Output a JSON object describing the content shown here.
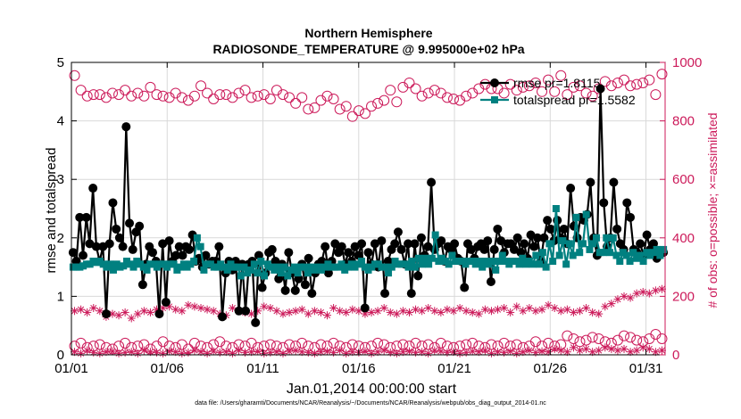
{
  "colors": {
    "rmse": "#000000",
    "spread": "#008080",
    "obs": "#cc1a5a",
    "axis": "#000000"
  },
  "chart_data": {
    "type": "line",
    "title": [
      "Northern Hemisphere",
      "RADIOSONDE_TEMPERATURE @ 9.995000e+02 hPa"
    ],
    "xlabel": "Jan.01,2014 00:00:00 start",
    "ylabel": "rmse and totalspread",
    "y2label": "# of obs: o=possible; ×=assimilated",
    "footnote": "data file: /Users/gharamti/Documents/NCAR/Reanalysis/~/Documents/NCAR/Reanalysis/webpub/obs_diag_output_2014-01.nc",
    "xlim": [
      0,
      31
    ],
    "ylim": [
      0,
      5
    ],
    "y2lim": [
      0,
      1000
    ],
    "xticks": [
      0,
      5,
      10,
      15,
      20,
      25,
      30
    ],
    "xticklabels": [
      "01/01",
      "01/06",
      "01/11",
      "01/16",
      "01/21",
      "01/26",
      "01/31"
    ],
    "yticks": [
      0,
      1,
      2,
      3,
      4,
      5
    ],
    "yticklabels": [
      "0",
      "1",
      "2",
      "3",
      "4",
      "5"
    ],
    "y2ticks": [
      0,
      200,
      400,
      600,
      800,
      1000
    ],
    "y2ticklabels": [
      "0",
      "200",
      "400",
      "600",
      "800",
      "1000"
    ],
    "legend": {
      "position": "top-right",
      "entries": [
        "rmse pr=1.8115",
        "totalspread pr=1.5582"
      ]
    },
    "series": [
      {
        "name": "rmse pr=1.8115",
        "axis": "left",
        "values": [
          1.75,
          1.6,
          2.35,
          1.7,
          2.35,
          1.9,
          2.85,
          1.85,
          1.6,
          1.85,
          0.7,
          1.9,
          2.6,
          2.15,
          2.0,
          1.85,
          3.9,
          2.25,
          1.8,
          2.1,
          2.2,
          1.2,
          1.55,
          1.85,
          1.75,
          1.6,
          0.7,
          1.9,
          0.9,
          1.95,
          1.6,
          1.7,
          1.85,
          1.7,
          1.85,
          1.8,
          2.05,
          1.6,
          1.65,
          1.5,
          1.7,
          1.55,
          1.6,
          1.6,
          1.85,
          0.65,
          1.4,
          1.6,
          1.45,
          1.6,
          0.75,
          1.55,
          0.75,
          1.55,
          1.6,
          0.55,
          1.7,
          1.15,
          1.4,
          1.75,
          1.8,
          1.6,
          1.3,
          1.55,
          1.1,
          1.75,
          1.4,
          1.1,
          1.3,
          1.55,
          1.2,
          1.65,
          1.05,
          1.4,
          1.55,
          1.6,
          1.85,
          1.4,
          1.6,
          1.9,
          1.75,
          1.85,
          1.55,
          1.75,
          1.6,
          1.85,
          1.7,
          1.9,
          0.8,
          1.75,
          1.55,
          1.9,
          1.5,
          1.95,
          1.05,
          1.6,
          1.8,
          1.9,
          2.1,
          1.8,
          1.55,
          1.9,
          1.05,
          1.9,
          1.35,
          2.0,
          1.7,
          1.85,
          2.95,
          1.8,
          1.9,
          1.95,
          1.6,
          1.85,
          1.8,
          1.9,
          1.65,
          1.6,
          1.15,
          1.9,
          1.8,
          1.65,
          1.85,
          1.9,
          1.8,
          1.95,
          1.25,
          1.8,
          2.15,
          1.95,
          1.75,
          1.9,
          1.9,
          1.8,
          2.0,
          1.75,
          1.9,
          1.65,
          2.05,
          1.85,
          2.0,
          1.6,
          2.0,
          2.3,
          2.15,
          1.95,
          2.3,
          2.0,
          2.15,
          1.9,
          2.85,
          2.2,
          2.0,
          2.35,
          2.3,
          2.4,
          2.95,
          2.0,
          1.7,
          4.55,
          2.6,
          1.85,
          2.0,
          2.95,
          2.15,
          1.9,
          1.8,
          2.6,
          2.35,
          1.8,
          1.75,
          1.9,
          1.7,
          2.05,
          1.8,
          1.9,
          1.65,
          1.75,
          1.75
        ]
      },
      {
        "name": "totalspread pr=1.5582",
        "axis": "left",
        "values": [
          1.5,
          1.5,
          1.5,
          1.52,
          1.55,
          1.55,
          1.6,
          1.58,
          1.6,
          1.55,
          1.5,
          1.55,
          1.45,
          1.55,
          1.5,
          1.52,
          1.6,
          1.55,
          1.5,
          1.6,
          1.55,
          1.5,
          1.45,
          1.55,
          1.55,
          1.5,
          1.55,
          1.55,
          1.5,
          1.55,
          1.55,
          1.45,
          1.5,
          1.55,
          1.5,
          1.55,
          1.6,
          2.0,
          1.85,
          1.45,
          1.55,
          1.55,
          1.5,
          1.5,
          1.55,
          1.5,
          1.45,
          1.55,
          1.5,
          1.5,
          1.35,
          1.5,
          1.4,
          1.45,
          1.55,
          1.4,
          1.6,
          1.35,
          1.55,
          1.5,
          1.45,
          1.5,
          1.4,
          1.5,
          1.35,
          1.45,
          1.5,
          1.4,
          1.5,
          1.5,
          1.4,
          1.5,
          1.45,
          1.5,
          1.45,
          1.5,
          1.55,
          1.5,
          1.5,
          1.5,
          1.55,
          1.45,
          1.5,
          1.55,
          1.5,
          1.55,
          1.6,
          1.5,
          1.45,
          1.5,
          1.55,
          1.55,
          1.5,
          1.5,
          1.4,
          1.5,
          1.6,
          1.55,
          1.55,
          1.55,
          1.5,
          1.6,
          1.5,
          1.65,
          1.55,
          1.65,
          1.55,
          1.65,
          2.05,
          1.6,
          1.65,
          1.6,
          1.55,
          1.7,
          1.6,
          1.6,
          1.6,
          1.55,
          1.6,
          1.6,
          1.55,
          1.6,
          1.5,
          1.6,
          1.55,
          1.6,
          1.45,
          1.6,
          1.7,
          1.6,
          1.55,
          1.6,
          1.6,
          1.55,
          1.65,
          1.55,
          1.6,
          1.55,
          1.7,
          1.55,
          1.75,
          1.5,
          1.9,
          1.6,
          2.5,
          1.7,
          1.95,
          1.55,
          1.9,
          1.7,
          2.35,
          1.75,
          1.9,
          2.4,
          1.8,
          1.9,
          2.0,
          1.75,
          1.75,
          2.0,
          1.75,
          2.0,
          1.7,
          1.6,
          1.75,
          1.7,
          1.6,
          1.75,
          1.65,
          1.7,
          1.6,
          1.75,
          1.7,
          1.75,
          1.8,
          1.7,
          1.8
        ]
      },
      {
        "name": "possible",
        "axis": "right",
        "marker": "circle",
        "values": [
          955,
          905,
          885,
          890,
          890,
          880,
          895,
          890,
          905,
          885,
          895,
          885,
          915,
          890,
          885,
          880,
          895,
          880,
          870,
          885,
          920,
          895,
          875,
          890,
          890,
          880,
          895,
          905,
          880,
          885,
          890,
          875,
          905,
          890,
          880,
          860,
          880,
          840,
          845,
          870,
          885,
          875,
          840,
          850,
          815,
          835,
          825,
          850,
          860,
          870,
          905,
          865,
          915,
          930,
          910,
          885,
          895,
          905,
          895,
          880,
          875,
          870,
          885,
          895,
          910,
          925,
          910,
          910,
          895,
          925,
          905,
          915,
          920,
          930,
          900,
          940,
          900,
          955,
          890,
          915,
          920,
          895,
          885,
          910,
          935,
          920,
          930,
          940,
          920,
          925,
          930,
          940,
          890,
          960
        ]
      },
      {
        "name": "possible_low",
        "axis": "right",
        "marker": "circle",
        "values": [
          30,
          40,
          25,
          30,
          35,
          25,
          20,
          30,
          40,
          25,
          30,
          35,
          20,
          30,
          45,
          30,
          25,
          35,
          20,
          40,
          30,
          25,
          35,
          45,
          30,
          25,
          35,
          30,
          40,
          25,
          30,
          35,
          30,
          25,
          35,
          30,
          40,
          30,
          25,
          35,
          30,
          40,
          30,
          25,
          35,
          30,
          25,
          30,
          40,
          35,
          25,
          30,
          35,
          30,
          40,
          30,
          35,
          25,
          40,
          30,
          25,
          30,
          35,
          40,
          30,
          25,
          35,
          30,
          40,
          30,
          35,
          25,
          30,
          45,
          30,
          40,
          30,
          35,
          65,
          55,
          45,
          50,
          60,
          55,
          45,
          40,
          50,
          65,
          60,
          50,
          45,
          55,
          70,
          55
        ]
      },
      {
        "name": "assimilated",
        "axis": "right",
        "marker": "star",
        "values": [
          150,
          155,
          145,
          160,
          150,
          130,
          140,
          135,
          145,
          125,
          140,
          150,
          145,
          155,
          160,
          165,
          155,
          150,
          170,
          165,
          160,
          155,
          150,
          140,
          135,
          160,
          150,
          145,
          140,
          150,
          165,
          160,
          150,
          140,
          145,
          150,
          155,
          140,
          150,
          145,
          135,
          160,
          150,
          145,
          155,
          150,
          140,
          145,
          150,
          160,
          145,
          140,
          150,
          145,
          155,
          150,
          160,
          150,
          145,
          155,
          150,
          160,
          150,
          145,
          140,
          155,
          150,
          155,
          160,
          145,
          165,
          150,
          160,
          150,
          155,
          170,
          160,
          150,
          155,
          145,
          150,
          160,
          145,
          140,
          165,
          175,
          190,
          200,
          195,
          210,
          215,
          210,
          220,
          225
        ]
      },
      {
        "name": "assimilated_low",
        "axis": "right",
        "marker": "star",
        "values": [
          10,
          5,
          15,
          8,
          5,
          10,
          12,
          5,
          8,
          10,
          5,
          15,
          10,
          8,
          5,
          12,
          10,
          5,
          8,
          15,
          10,
          5,
          12,
          8,
          10,
          5,
          15,
          8,
          10,
          12,
          5,
          8,
          10,
          5,
          12,
          15,
          10,
          8,
          5,
          10,
          12,
          8,
          15,
          5,
          10,
          8,
          12,
          5,
          10,
          15,
          8,
          5,
          10,
          12,
          8,
          10,
          5,
          15,
          12,
          8,
          10,
          5,
          8,
          12,
          10,
          15,
          5,
          10,
          8,
          12,
          5,
          10,
          15,
          8,
          12,
          10,
          20,
          15,
          10,
          25,
          15,
          20,
          10,
          15,
          25,
          20,
          15,
          20,
          10,
          15,
          25,
          20,
          10,
          15
        ]
      }
    ]
  }
}
